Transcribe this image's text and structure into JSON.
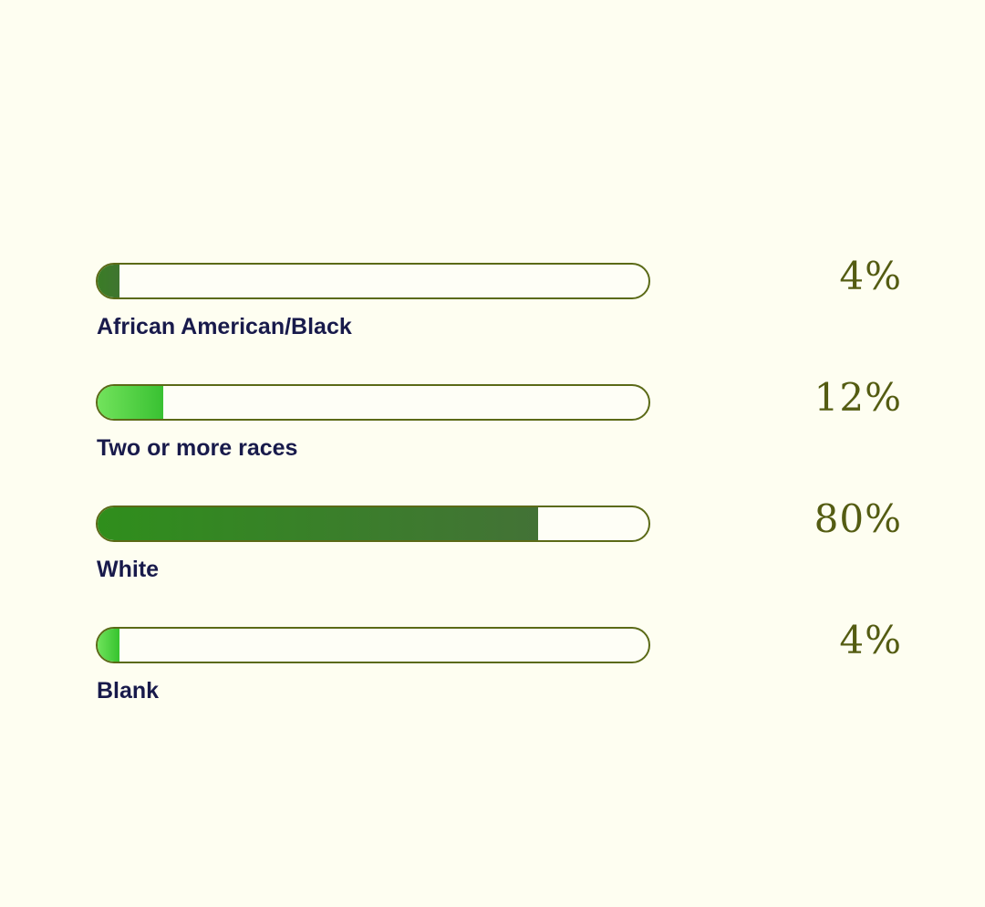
{
  "chart_data": {
    "type": "bar",
    "orientation": "horizontal",
    "value_unit": "%",
    "xlim": [
      0,
      100
    ],
    "categories": [
      "African American/Black",
      "Two or more races",
      "White",
      "Blank"
    ],
    "values": [
      4,
      12,
      80,
      4
    ],
    "value_labels": [
      "4%",
      "12%",
      "80%",
      "4%"
    ],
    "bar_colors": [
      [
        "#3a7c26",
        "#3f7530"
      ],
      [
        "#72e35c",
        "#39c132"
      ],
      [
        "#2f8e1c",
        "#437236"
      ],
      [
        "#6fe35b",
        "#36c32e"
      ]
    ],
    "track_color": "#fefef6",
    "track_border_color": "#5b6a17",
    "label_color": "#181a4b",
    "value_color": "#545c12",
    "background": "#fefef1",
    "grid": false,
    "legend": "none"
  }
}
